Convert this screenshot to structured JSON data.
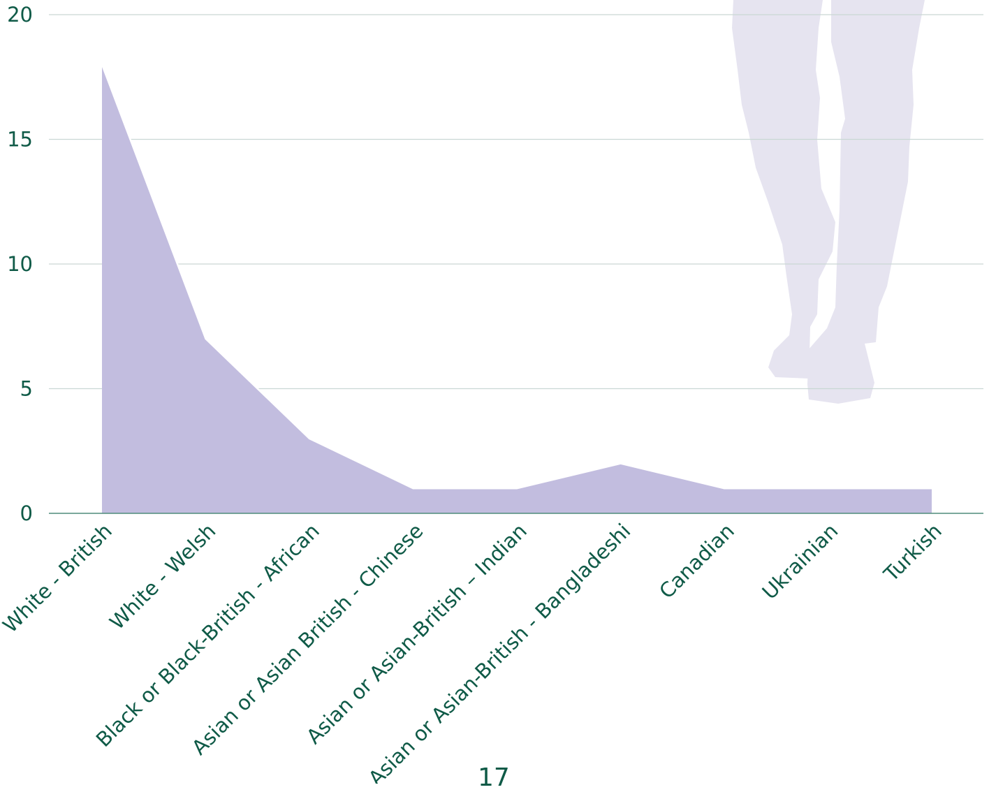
{
  "chart_data": {
    "type": "area",
    "categories": [
      "White - British",
      "White - Welsh",
      "Black or Black-British - African",
      "Asian or Asian British - Chinese",
      "Asian or Asian-British – Indian",
      "Asian or Asian-British - Bangladeshi",
      "Canadian",
      "Ukrainian",
      "Turkish"
    ],
    "values": [
      18,
      7,
      3,
      1,
      1,
      2,
      1,
      1,
      1
    ],
    "ylim": [
      0,
      20
    ],
    "yticks": [
      0,
      5,
      10,
      15,
      20
    ],
    "grid": true,
    "colors": {
      "area": "#c2bddf",
      "text": "#0f5a47",
      "grid": "#c9d8d4",
      "decor": "#e6e4f0"
    }
  },
  "decoration": {
    "image": "silhouette-legs-illustration"
  },
  "page_number": "17"
}
